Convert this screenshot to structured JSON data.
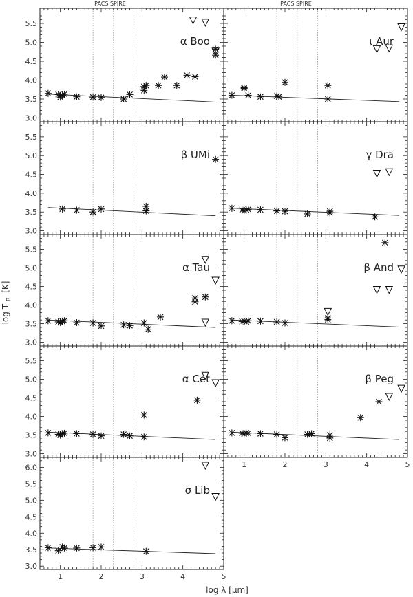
{
  "figure": {
    "ylabel": "log T",
    "ylabel_sub": "B",
    "ylabel_unit": "[K]",
    "xlabel": "log λ [μm]",
    "top_label_left": "PACS SPIRE",
    "top_label_right": "PACS SPIRE"
  },
  "colors": {
    "axis": "#222222",
    "marker": "#111111",
    "vline": "#999999"
  },
  "chart_data": [
    {
      "type": "scatter",
      "title": "α Boo",
      "xlim": [
        0.5,
        5
      ],
      "ylim": [
        2.9,
        5.9
      ],
      "yticks": [
        "3.0",
        "3.5",
        "4.0",
        "4.5",
        "5.0",
        "5.5"
      ],
      "x_tick_labels": [],
      "vlines": [
        1.8,
        2.3,
        2.8
      ],
      "model_line": [
        [
          0.7,
          3.63
        ],
        [
          4.8,
          3.42
        ]
      ],
      "points": [
        [
          0.7,
          3.65
        ],
        [
          0.95,
          3.62
        ],
        [
          1.0,
          3.55
        ],
        [
          1.05,
          3.6
        ],
        [
          1.1,
          3.63
        ],
        [
          1.4,
          3.56
        ],
        [
          1.8,
          3.55
        ],
        [
          2.0,
          3.54
        ],
        [
          2.55,
          3.5
        ],
        [
          2.7,
          3.62
        ],
        [
          3.05,
          3.73
        ],
        [
          3.05,
          3.83
        ],
        [
          3.1,
          3.86
        ],
        [
          3.4,
          3.86
        ],
        [
          3.55,
          4.08
        ],
        [
          3.85,
          3.86
        ],
        [
          4.1,
          4.13
        ],
        [
          4.3,
          4.09
        ],
        [
          4.8,
          4.66
        ],
        [
          4.8,
          4.82
        ]
      ],
      "upper_limits": [
        [
          4.25,
          5.58
        ],
        [
          4.55,
          5.52
        ],
        [
          4.8,
          4.76
        ]
      ]
    },
    {
      "type": "scatter",
      "title": "ι Aur",
      "xlim": [
        0.5,
        5
      ],
      "ylim": [
        2.9,
        5.9
      ],
      "yticks": [],
      "x_tick_labels": [],
      "vlines": [
        1.8,
        2.3,
        2.8
      ],
      "model_line": [
        [
          0.7,
          3.6
        ],
        [
          4.8,
          3.43
        ]
      ],
      "points": [
        [
          0.7,
          3.6
        ],
        [
          1.0,
          3.8
        ],
        [
          1.0,
          3.78
        ],
        [
          1.1,
          3.6
        ],
        [
          1.4,
          3.56
        ],
        [
          1.8,
          3.58
        ],
        [
          1.85,
          3.56
        ],
        [
          2.0,
          3.94
        ],
        [
          3.05,
          3.86
        ],
        [
          3.05,
          3.5
        ]
      ],
      "upper_limits": [
        [
          4.25,
          4.82
        ],
        [
          4.55,
          4.84
        ],
        [
          4.85,
          5.4
        ]
      ]
    },
    {
      "type": "scatter",
      "title": "β UMi",
      "xlim": [
        0.5,
        5
      ],
      "ylim": [
        2.9,
        5.9
      ],
      "yticks": [
        "3.0",
        "3.5",
        "4.0",
        "4.5",
        "5.0",
        "5.5"
      ],
      "x_tick_labels": [],
      "vlines": [
        1.8,
        2.3,
        2.8
      ],
      "model_line": [
        [
          0.7,
          3.62
        ],
        [
          4.8,
          3.4
        ]
      ],
      "points": [
        [
          1.05,
          3.58
        ],
        [
          1.4,
          3.55
        ],
        [
          1.8,
          3.5
        ],
        [
          2.0,
          3.58
        ],
        [
          3.1,
          3.53
        ],
        [
          3.1,
          3.65
        ],
        [
          4.8,
          4.9
        ]
      ],
      "upper_limits": []
    },
    {
      "type": "scatter",
      "title": "γ Dra",
      "xlim": [
        0.5,
        5
      ],
      "ylim": [
        2.9,
        5.9
      ],
      "yticks": [],
      "x_tick_labels": [],
      "vlines": [
        1.8,
        2.3,
        2.8
      ],
      "model_line": [
        [
          0.7,
          3.6
        ],
        [
          4.8,
          3.41
        ]
      ],
      "points": [
        [
          0.7,
          3.6
        ],
        [
          0.95,
          3.55
        ],
        [
          1.0,
          3.54
        ],
        [
          1.05,
          3.56
        ],
        [
          1.1,
          3.57
        ],
        [
          1.4,
          3.56
        ],
        [
          1.8,
          3.53
        ],
        [
          2.0,
          3.52
        ],
        [
          2.55,
          3.45
        ],
        [
          3.1,
          3.52
        ],
        [
          3.1,
          3.48
        ],
        [
          4.2,
          3.37
        ]
      ],
      "upper_limits": [
        [
          4.25,
          4.52
        ],
        [
          4.55,
          4.56
        ]
      ]
    },
    {
      "type": "scatter",
      "title": "α Tau",
      "xlim": [
        0.5,
        5
      ],
      "ylim": [
        2.9,
        5.9
      ],
      "yticks": [
        "3.0",
        "3.5",
        "4.0",
        "4.5",
        "5.0",
        "5.5"
      ],
      "x_tick_labels": [],
      "vlines": [
        1.8,
        2.3,
        2.8
      ],
      "model_line": [
        [
          0.7,
          3.6
        ],
        [
          4.8,
          3.4
        ]
      ],
      "points": [
        [
          0.7,
          3.58
        ],
        [
          0.95,
          3.55
        ],
        [
          1.0,
          3.53
        ],
        [
          1.05,
          3.57
        ],
        [
          1.1,
          3.58
        ],
        [
          1.4,
          3.53
        ],
        [
          1.8,
          3.52
        ],
        [
          2.0,
          3.44
        ],
        [
          2.55,
          3.47
        ],
        [
          2.7,
          3.45
        ],
        [
          3.05,
          3.52
        ],
        [
          3.15,
          3.35
        ],
        [
          3.45,
          3.68
        ],
        [
          4.3,
          4.09
        ],
        [
          4.3,
          4.19
        ],
        [
          4.55,
          4.22
        ]
      ],
      "upper_limits": [
        [
          4.55,
          5.22
        ],
        [
          4.8,
          4.66
        ],
        [
          4.55,
          3.53
        ]
      ]
    },
    {
      "type": "scatter",
      "title": "β And",
      "xlim": [
        0.5,
        5
      ],
      "ylim": [
        2.9,
        5.9
      ],
      "yticks": [],
      "x_tick_labels": [],
      "vlines": [
        1.8,
        2.3,
        2.8
      ],
      "model_line": [
        [
          0.7,
          3.6
        ],
        [
          4.8,
          3.41
        ]
      ],
      "points": [
        [
          0.7,
          3.58
        ],
        [
          0.95,
          3.56
        ],
        [
          1.0,
          3.57
        ],
        [
          1.05,
          3.55
        ],
        [
          1.1,
          3.58
        ],
        [
          1.4,
          3.57
        ],
        [
          1.8,
          3.55
        ],
        [
          2.0,
          3.52
        ],
        [
          3.05,
          3.61
        ],
        [
          3.05,
          3.65
        ],
        [
          4.45,
          5.68
        ]
      ],
      "upper_limits": [
        [
          3.05,
          3.82
        ],
        [
          4.25,
          4.41
        ],
        [
          4.55,
          4.41
        ],
        [
          4.85,
          4.96
        ]
      ]
    },
    {
      "type": "scatter",
      "title": "α Cet",
      "xlim": [
        0.5,
        5
      ],
      "ylim": [
        2.9,
        5.9
      ],
      "yticks": [
        "3.0",
        "3.5",
        "4.0",
        "4.5",
        "5.0",
        "5.5"
      ],
      "x_tick_labels": [],
      "vlines": [
        1.8,
        2.3,
        2.8
      ],
      "model_line": [
        [
          0.7,
          3.58
        ],
        [
          4.8,
          3.38
        ]
      ],
      "points": [
        [
          0.7,
          3.56
        ],
        [
          0.95,
          3.52
        ],
        [
          1.0,
          3.5
        ],
        [
          1.05,
          3.54
        ],
        [
          1.1,
          3.55
        ],
        [
          1.4,
          3.54
        ],
        [
          1.8,
          3.52
        ],
        [
          2.0,
          3.48
        ],
        [
          2.55,
          3.52
        ],
        [
          2.7,
          3.48
        ],
        [
          3.05,
          4.04
        ],
        [
          3.05,
          3.45
        ],
        [
          4.35,
          4.44
        ]
      ],
      "upper_limits": [
        [
          4.55,
          5.1
        ],
        [
          4.8,
          4.9
        ]
      ]
    },
    {
      "type": "scatter",
      "title": "β Peg",
      "xlim": [
        0.5,
        5
      ],
      "ylim": [
        2.9,
        5.9
      ],
      "yticks": [],
      "x_tick_labels": [
        "1",
        "2",
        "3",
        "4",
        "5"
      ],
      "vlines": [
        1.8,
        2.3,
        2.8
      ],
      "model_line": [
        [
          0.7,
          3.58
        ],
        [
          4.8,
          3.38
        ]
      ],
      "points": [
        [
          0.7,
          3.56
        ],
        [
          0.95,
          3.55
        ],
        [
          1.0,
          3.54
        ],
        [
          1.05,
          3.56
        ],
        [
          1.1,
          3.55
        ],
        [
          1.4,
          3.54
        ],
        [
          1.8,
          3.52
        ],
        [
          2.0,
          3.43
        ],
        [
          2.55,
          3.52
        ],
        [
          2.65,
          3.54
        ],
        [
          3.1,
          3.5
        ],
        [
          3.1,
          3.42
        ],
        [
          3.85,
          3.97
        ],
        [
          4.3,
          4.4
        ]
      ],
      "upper_limits": [
        [
          4.55,
          4.53
        ],
        [
          4.85,
          4.75
        ]
      ]
    },
    {
      "type": "scatter",
      "title": "σ Lib",
      "xlim": [
        0.5,
        5
      ],
      "ylim": [
        2.9,
        6.3
      ],
      "yticks": [
        "3.0",
        "3.5",
        "4.0",
        "4.5",
        "5.0",
        "5.5",
        "6.0"
      ],
      "x_tick_labels": [
        "1",
        "2",
        "3",
        "4",
        "5"
      ],
      "vlines": [
        1.8,
        2.3,
        2.8
      ],
      "model_line": [
        [
          0.7,
          3.55
        ],
        [
          4.8,
          3.38
        ]
      ],
      "points": [
        [
          0.7,
          3.56
        ],
        [
          0.95,
          3.47
        ],
        [
          1.05,
          3.58
        ],
        [
          1.1,
          3.55
        ],
        [
          1.4,
          3.55
        ],
        [
          1.8,
          3.56
        ],
        [
          2.0,
          3.58
        ],
        [
          3.1,
          3.45
        ]
      ],
      "upper_limits": [
        [
          4.55,
          6.05
        ],
        [
          4.8,
          5.1
        ]
      ]
    }
  ]
}
